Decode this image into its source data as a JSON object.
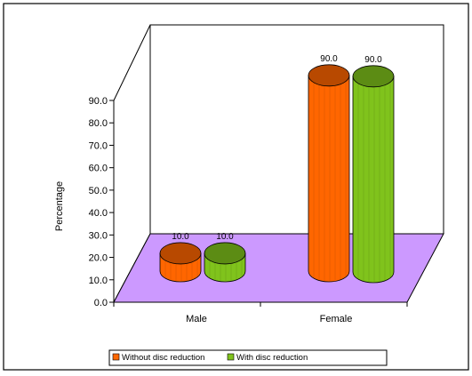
{
  "chart_data": {
    "type": "bar",
    "categories": [
      "Male",
      "Female"
    ],
    "series": [
      {
        "name": "Without disc reduction",
        "values": [
          10.0,
          90.0
        ],
        "labels": [
          "10.0",
          "90.0"
        ],
        "color": "#ff6600"
      },
      {
        "name": "With disc reduction",
        "values": [
          10.0,
          90.0
        ],
        "labels": [
          "10.0",
          "90.0"
        ],
        "color": "#80c31c"
      }
    ],
    "ylabel": "Percentage",
    "ylim": [
      0,
      90
    ],
    "yticks": [
      "0.0",
      "10.0",
      "20.0",
      "30.0",
      "40.0",
      "50.0",
      "60.0",
      "70.0",
      "80.0",
      "90.0"
    ],
    "floor_color": "#cc99ff",
    "legend_position": "bottom",
    "three_d": true
  }
}
